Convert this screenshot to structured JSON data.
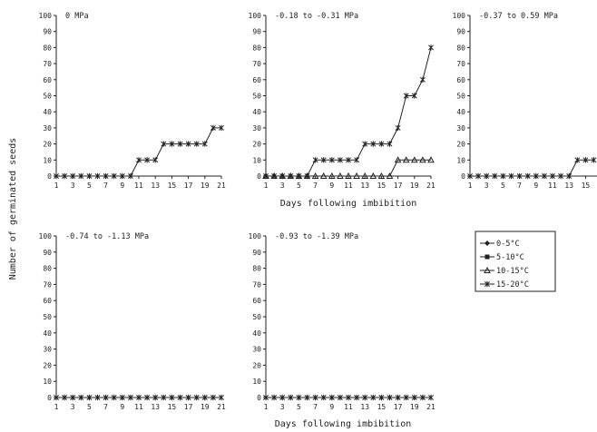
{
  "figure": {
    "ylabel": "Number of germinated seeds",
    "xlabel_top": "Days following imbibition",
    "xlabel_bottom": "Days following imbibition"
  },
  "legend": {
    "entries": [
      {
        "label": "0-5°C",
        "marker": "diamond"
      },
      {
        "label": "5-10°C",
        "marker": "square"
      },
      {
        "label": "10-15°C",
        "marker": "triangle"
      },
      {
        "label": "15-20°C",
        "marker": "star"
      }
    ]
  },
  "chart_data": [
    {
      "type": "line",
      "title": "0 MPa",
      "ylim": [
        0,
        100
      ],
      "yticks": [
        0,
        10,
        20,
        30,
        40,
        50,
        60,
        70,
        80,
        90,
        100
      ],
      "x": [
        1,
        2,
        3,
        4,
        5,
        6,
        7,
        8,
        9,
        10,
        11,
        12,
        13,
        14,
        15,
        16,
        17,
        18,
        19,
        20,
        21
      ],
      "xticks": [
        1,
        3,
        5,
        7,
        9,
        11,
        13,
        15,
        17,
        19,
        21
      ],
      "xlim": [
        1,
        21
      ],
      "series": [
        {
          "name": "15-20°C",
          "marker": "star",
          "values": [
            0,
            0,
            0,
            0,
            0,
            0,
            0,
            0,
            0,
            0,
            10,
            10,
            10,
            20,
            20,
            20,
            20,
            20,
            20,
            30,
            30
          ]
        }
      ]
    },
    {
      "type": "line",
      "title": "-0.18 to -0.31 MPa",
      "ylim": [
        0,
        100
      ],
      "yticks": [
        0,
        10,
        20,
        30,
        40,
        50,
        60,
        70,
        80,
        90,
        100
      ],
      "x": [
        1,
        2,
        3,
        4,
        5,
        6,
        7,
        8,
        9,
        10,
        11,
        12,
        13,
        14,
        15,
        16,
        17,
        18,
        19,
        20,
        21
      ],
      "xticks": [
        1,
        3,
        5,
        7,
        9,
        11,
        13,
        15,
        17,
        19,
        21
      ],
      "xlim": [
        1,
        21
      ],
      "series": [
        {
          "name": "10-15°C",
          "marker": "triangle",
          "values": [
            0,
            0,
            0,
            0,
            0,
            0,
            0,
            0,
            0,
            0,
            0,
            0,
            0,
            0,
            0,
            0,
            10,
            10,
            10,
            10,
            10
          ]
        },
        {
          "name": "15-20°C",
          "marker": "star",
          "values": [
            0,
            0,
            0,
            0,
            0,
            0,
            10,
            10,
            10,
            10,
            10,
            10,
            20,
            20,
            20,
            20,
            30,
            50,
            50,
            60,
            80
          ]
        }
      ]
    },
    {
      "type": "line",
      "title": "-0.37 to 0.59 MPa",
      "ylim": [
        0,
        100
      ],
      "yticks": [
        0,
        10,
        20,
        30,
        40,
        50,
        60,
        70,
        80,
        90,
        100
      ],
      "x": [
        1,
        2,
        3,
        4,
        5,
        6,
        7,
        8,
        9,
        10,
        11,
        12,
        13,
        14,
        15,
        16
      ],
      "xticks": [
        1,
        3,
        5,
        7,
        9,
        11,
        13,
        15
      ],
      "xlim": [
        1,
        21
      ],
      "series": [
        {
          "name": "15-20°C",
          "marker": "star",
          "values": [
            0,
            0,
            0,
            0,
            0,
            0,
            0,
            0,
            0,
            0,
            0,
            0,
            0,
            10,
            10,
            10
          ]
        }
      ]
    },
    {
      "type": "line",
      "title": "-0.74 to -1.13 MPa",
      "ylim": [
        0,
        100
      ],
      "yticks": [
        0,
        10,
        20,
        30,
        40,
        50,
        60,
        70,
        80,
        90,
        100
      ],
      "x": [
        1,
        2,
        3,
        4,
        5,
        6,
        7,
        8,
        9,
        10,
        11,
        12,
        13,
        14,
        15,
        16,
        17,
        18,
        19,
        20,
        21
      ],
      "xticks": [
        1,
        3,
        5,
        7,
        9,
        11,
        13,
        15,
        17,
        19,
        21
      ],
      "xlim": [
        1,
        21
      ],
      "series": [
        {
          "name": "15-20°C",
          "marker": "star",
          "values": [
            0,
            0,
            0,
            0,
            0,
            0,
            0,
            0,
            0,
            0,
            0,
            0,
            0,
            0,
            0,
            0,
            0,
            0,
            0,
            0,
            0
          ]
        }
      ]
    },
    {
      "type": "line",
      "title": "-0.93 to -1.39 MPa",
      "ylim": [
        0,
        100
      ],
      "yticks": [
        0,
        10,
        20,
        30,
        40,
        50,
        60,
        70,
        80,
        90,
        100
      ],
      "x": [
        1,
        2,
        3,
        4,
        5,
        6,
        7,
        8,
        9,
        10,
        11,
        12,
        13,
        14,
        15,
        16,
        17,
        18,
        19,
        20,
        21
      ],
      "xticks": [
        1,
        3,
        5,
        7,
        9,
        11,
        13,
        15,
        17,
        19,
        21
      ],
      "xlim": [
        1,
        21
      ],
      "series": [
        {
          "name": "15-20°C",
          "marker": "star",
          "values": [
            0,
            0,
            0,
            0,
            0,
            0,
            0,
            0,
            0,
            0,
            0,
            0,
            0,
            0,
            0,
            0,
            0,
            0,
            0,
            0,
            0
          ]
        }
      ]
    }
  ]
}
